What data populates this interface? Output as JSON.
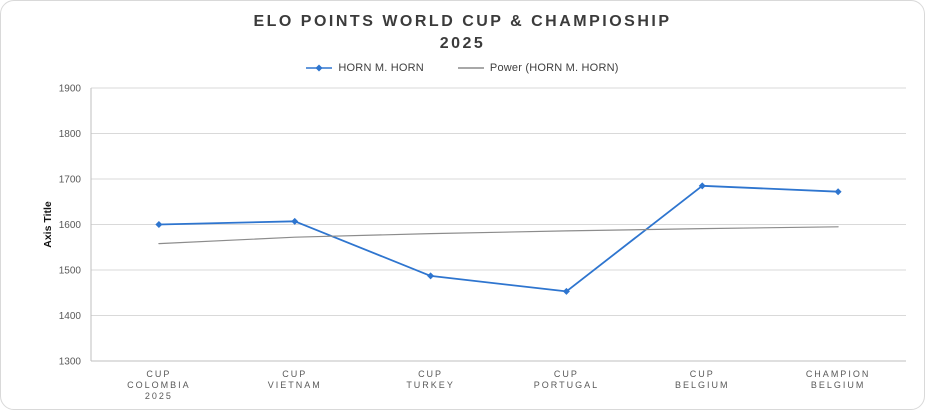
{
  "title": {
    "line1": "ELO POINTS WORLD CUP & CHAMPIOSHIP",
    "line2": "2025"
  },
  "axis": {
    "y_title": "Axis Title"
  },
  "legend": {
    "items": [
      {
        "label": "HORN M. HORN",
        "marker": "line-diamond",
        "color": "#2e75cf"
      },
      {
        "label": "Power (HORN M. HORN)",
        "marker": "line",
        "color": "#8c8c8c"
      }
    ]
  },
  "colors": {
    "series_blue": "#2e75cf",
    "trend_gray": "#8c8c8c",
    "gridline": "#d9d9d9",
    "axis_line": "#bfbfbf",
    "tick_text": "#595959"
  },
  "chart_data": {
    "type": "line",
    "title": "ELO POINTS WORLD CUP & CHAMPIOSHIP 2025",
    "xlabel": "",
    "ylabel": "Axis Title",
    "ylim": [
      1300,
      1900
    ],
    "ytick_step": 100,
    "grid": true,
    "legend_position": "top",
    "categories": [
      [
        "CUP",
        "COLOMBIA",
        "2025"
      ],
      [
        "CUP",
        "VIETNAM"
      ],
      [
        "CUP",
        "TURKEY"
      ],
      [
        "CUP",
        "PORTUGAL"
      ],
      [
        "CUP",
        "BELGIUM"
      ],
      [
        "CHAMPION",
        "BELGIUM"
      ]
    ],
    "series": [
      {
        "name": "HORN M. HORN",
        "color": "#2e75cf",
        "marker": "diamond",
        "stroke_width": 1.8,
        "values": [
          1600,
          1607,
          1487,
          1453,
          1685,
          1672
        ]
      },
      {
        "name": "Power (HORN M. HORN)",
        "color": "#8c8c8c",
        "marker": "none",
        "stroke_width": 1.2,
        "values": [
          1558,
          1572,
          1580,
          1586,
          1591,
          1595
        ]
      }
    ]
  }
}
